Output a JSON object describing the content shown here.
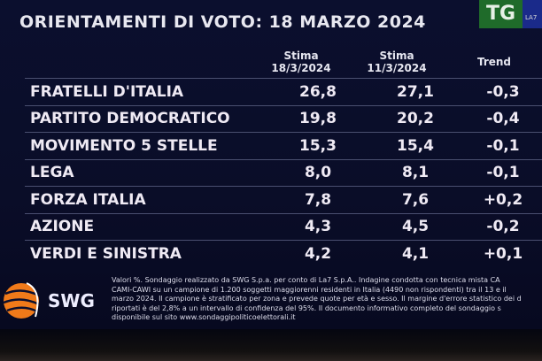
{
  "header": {
    "title": "ORIENTAMENTI DI VOTO: 18 MARZO 2024",
    "logo_tg": "TG",
    "logo_la7": "LA7"
  },
  "chart_data": {
    "type": "table",
    "title": "ORIENTAMENTI DI VOTO: 18 MARZO 2024",
    "columns": [
      {
        "line1": "",
        "line2": ""
      },
      {
        "line1": "Stima",
        "line2": "18/3/2024"
      },
      {
        "line1": "Stima",
        "line2": "11/3/2024"
      },
      {
        "line1": "Trend",
        "line2": ""
      }
    ],
    "rows": [
      {
        "party": "FRATELLI D'ITALIA",
        "current": "26,8",
        "previous": "27,1",
        "trend": "-0,3"
      },
      {
        "party": "PARTITO DEMOCRATICO",
        "current": "19,8",
        "previous": "20,2",
        "trend": "-0,4"
      },
      {
        "party": "MOVIMENTO 5 STELLE",
        "current": "15,3",
        "previous": "15,4",
        "trend": "-0,1"
      },
      {
        "party": "LEGA",
        "current": "8,0",
        "previous": "8,1",
        "trend": "-0,1"
      },
      {
        "party": "FORZA ITALIA",
        "current": "7,8",
        "previous": "7,6",
        "trend": "+0,2"
      },
      {
        "party": "AZIONE",
        "current": "4,3",
        "previous": "4,5",
        "trend": "-0,2"
      },
      {
        "party": "VERDI E SINISTRA",
        "current": "4,2",
        "previous": "4,1",
        "trend": "+0,1"
      }
    ]
  },
  "footer": {
    "logo": "SWG",
    "note_lines": [
      "Valori %. Sondaggio realizzato da SWG S.p.a. per conto di La7 S.p.A.. Indagine condotta con tecnica mista CA",
      "CAMI-CAWI su un campione di 1.200 soggetti maggiorenni residenti in Italia (4490 non rispondenti) tra il 13 e il",
      "marzo 2024. Il campione è stratificato per zona e prevede quote per età e sesso. Il margine d'errore statistico dei d",
      "riportati è del 2,8% a un intervallo di confidenza del 95%. Il documento informativo completo del sondaggio s",
      "disponibile sul sito www.sondaggipoliticoelettorali.it"
    ]
  },
  "colors": {
    "background": "#0b0f2e",
    "text": "#efeaf4",
    "tg_green": "#1f6b2a",
    "swg_orange": "#f07a1a"
  }
}
